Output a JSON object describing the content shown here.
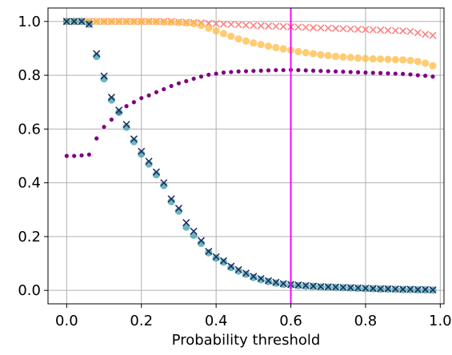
{
  "chart_data": {
    "type": "scatter",
    "xlabel": "Probability threshold",
    "ylabel": "",
    "xlim": [
      -0.05,
      1.01
    ],
    "ylim": [
      -0.05,
      1.05
    ],
    "grid": true,
    "x_ticks": [
      "0.0",
      "0.2",
      "0.4",
      "0.6",
      "0.8",
      "1.0"
    ],
    "y_ticks": [
      "0.0",
      "0.2",
      "0.4",
      "0.6",
      "0.8",
      "1.0"
    ],
    "x_tick_values": [
      0.0,
      0.2,
      0.4,
      0.6,
      0.8,
      1.0
    ],
    "y_tick_values": [
      0.0,
      0.2,
      0.4,
      0.6,
      0.8,
      1.0
    ],
    "threshold_line": {
      "x": 0.6,
      "color": "#ff00ff"
    },
    "series": [
      {
        "marker": "x",
        "color": "#ff7b7b",
        "x": [
          0.0,
          0.02,
          0.04,
          0.06,
          0.08,
          0.1,
          0.12,
          0.14,
          0.16,
          0.18,
          0.2,
          0.22,
          0.24,
          0.26,
          0.28,
          0.3,
          0.32,
          0.34,
          0.36,
          0.38,
          0.4,
          0.42,
          0.44,
          0.46,
          0.48,
          0.5,
          0.52,
          0.54,
          0.56,
          0.58,
          0.6,
          0.62,
          0.64,
          0.66,
          0.68,
          0.7,
          0.72,
          0.74,
          0.76,
          0.78,
          0.8,
          0.82,
          0.84,
          0.86,
          0.88,
          0.9,
          0.92,
          0.94,
          0.96,
          0.98
        ],
        "values": [
          1.0,
          1.0,
          1.0,
          1.0,
          1.0,
          1.0,
          1.0,
          1.0,
          1.0,
          1.0,
          1.0,
          1.0,
          1.0,
          1.0,
          1.0,
          0.998,
          0.997,
          0.996,
          0.995,
          0.993,
          0.992,
          0.99,
          0.989,
          0.988,
          0.986,
          0.985,
          0.984,
          0.983,
          0.982,
          0.981,
          0.98,
          0.979,
          0.978,
          0.977,
          0.976,
          0.975,
          0.974,
          0.973,
          0.972,
          0.971,
          0.97,
          0.969,
          0.968,
          0.967,
          0.966,
          0.965,
          0.963,
          0.958,
          0.952,
          0.948
        ]
      },
      {
        "marker": "circle",
        "color": "#ffbb44",
        "x": [
          0.0,
          0.02,
          0.04,
          0.06,
          0.08,
          0.1,
          0.12,
          0.14,
          0.16,
          0.18,
          0.2,
          0.22,
          0.24,
          0.26,
          0.28,
          0.3,
          0.32,
          0.34,
          0.36,
          0.38,
          0.4,
          0.42,
          0.44,
          0.46,
          0.48,
          0.5,
          0.52,
          0.54,
          0.56,
          0.58,
          0.6,
          0.62,
          0.64,
          0.66,
          0.68,
          0.7,
          0.72,
          0.74,
          0.76,
          0.78,
          0.8,
          0.82,
          0.84,
          0.86,
          0.88,
          0.9,
          0.92,
          0.94,
          0.96,
          0.98
        ],
        "values": [
          1.0,
          1.0,
          1.0,
          1.0,
          1.0,
          1.0,
          1.0,
          1.0,
          1.0,
          1.0,
          1.0,
          1.0,
          0.999,
          0.998,
          0.997,
          0.996,
          0.994,
          0.992,
          0.985,
          0.975,
          0.965,
          0.955,
          0.945,
          0.935,
          0.927,
          0.92,
          0.914,
          0.908,
          0.903,
          0.898,
          0.893,
          0.888,
          0.884,
          0.88,
          0.876,
          0.873,
          0.87,
          0.868,
          0.866,
          0.864,
          0.862,
          0.861,
          0.86,
          0.859,
          0.858,
          0.857,
          0.855,
          0.851,
          0.845,
          0.835
        ]
      },
      {
        "marker": "dot",
        "color": "#800080",
        "x": [
          0.0,
          0.02,
          0.04,
          0.06,
          0.08,
          0.1,
          0.12,
          0.14,
          0.16,
          0.18,
          0.2,
          0.22,
          0.24,
          0.26,
          0.28,
          0.3,
          0.32,
          0.34,
          0.36,
          0.38,
          0.4,
          0.42,
          0.44,
          0.46,
          0.48,
          0.5,
          0.52,
          0.54,
          0.56,
          0.58,
          0.6,
          0.62,
          0.64,
          0.66,
          0.68,
          0.7,
          0.72,
          0.74,
          0.76,
          0.78,
          0.8,
          0.82,
          0.84,
          0.86,
          0.88,
          0.9,
          0.92,
          0.94,
          0.96,
          0.98
        ],
        "values": [
          0.5,
          0.5,
          0.502,
          0.505,
          0.565,
          0.608,
          0.635,
          0.66,
          0.685,
          0.7,
          0.715,
          0.725,
          0.737,
          0.748,
          0.76,
          0.77,
          0.778,
          0.787,
          0.795,
          0.802,
          0.806,
          0.81,
          0.812,
          0.814,
          0.815,
          0.816,
          0.817,
          0.818,
          0.819,
          0.819,
          0.82,
          0.819,
          0.818,
          0.817,
          0.816,
          0.815,
          0.814,
          0.813,
          0.812,
          0.811,
          0.81,
          0.809,
          0.808,
          0.807,
          0.806,
          0.805,
          0.803,
          0.8,
          0.798,
          0.795
        ]
      },
      {
        "marker": "circle",
        "color": "#3a9faa",
        "x": [
          0.0,
          0.02,
          0.04,
          0.06,
          0.08,
          0.1,
          0.12,
          0.14,
          0.16,
          0.18,
          0.2,
          0.22,
          0.24,
          0.26,
          0.28,
          0.3,
          0.32,
          0.34,
          0.36,
          0.38,
          0.4,
          0.42,
          0.44,
          0.46,
          0.48,
          0.5,
          0.52,
          0.54,
          0.56,
          0.58,
          0.6,
          0.62,
          0.64,
          0.66,
          0.68,
          0.7,
          0.72,
          0.74,
          0.76,
          0.78,
          0.8,
          0.82,
          0.84,
          0.86,
          0.88,
          0.9,
          0.92,
          0.94,
          0.96,
          0.98
        ],
        "values": [
          1.0,
          1.0,
          1.0,
          0.99,
          0.87,
          0.787,
          0.708,
          0.662,
          0.607,
          0.553,
          0.507,
          0.47,
          0.43,
          0.39,
          0.33,
          0.295,
          0.235,
          0.205,
          0.175,
          0.14,
          0.12,
          0.105,
          0.085,
          0.072,
          0.06,
          0.048,
          0.04,
          0.033,
          0.027,
          0.022,
          0.02,
          0.018,
          0.016,
          0.015,
          0.013,
          0.012,
          0.011,
          0.01,
          0.009,
          0.008,
          0.007,
          0.006,
          0.005,
          0.005,
          0.004,
          0.003,
          0.003,
          0.002,
          0.002,
          0.001
        ]
      },
      {
        "marker": "x",
        "color": "#1b2a5e",
        "x": [
          0.0,
          0.02,
          0.04,
          0.06,
          0.08,
          0.1,
          0.12,
          0.14,
          0.16,
          0.18,
          0.2,
          0.22,
          0.24,
          0.26,
          0.28,
          0.3,
          0.32,
          0.34,
          0.36,
          0.38,
          0.4,
          0.42,
          0.44,
          0.46,
          0.48,
          0.5,
          0.52,
          0.54,
          0.56,
          0.58,
          0.6,
          0.62,
          0.64,
          0.66,
          0.68,
          0.7,
          0.72,
          0.74,
          0.76,
          0.78,
          0.8,
          0.82,
          0.84,
          0.86,
          0.88,
          0.9,
          0.92,
          0.94,
          0.96,
          0.98
        ],
        "values": [
          1.0,
          1.0,
          1.0,
          0.99,
          0.88,
          0.797,
          0.718,
          0.67,
          0.617,
          0.563,
          0.517,
          0.48,
          0.44,
          0.4,
          0.34,
          0.305,
          0.252,
          0.22,
          0.185,
          0.145,
          0.125,
          0.11,
          0.09,
          0.077,
          0.064,
          0.052,
          0.044,
          0.036,
          0.03,
          0.025,
          0.022,
          0.02,
          0.018,
          0.016,
          0.014,
          0.013,
          0.012,
          0.011,
          0.01,
          0.009,
          0.008,
          0.007,
          0.006,
          0.006,
          0.005,
          0.004,
          0.004,
          0.003,
          0.003,
          0.002
        ]
      }
    ]
  }
}
